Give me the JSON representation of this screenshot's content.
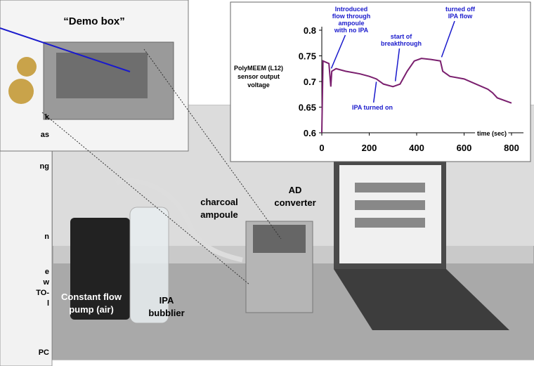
{
  "left_panel_fragments": [
    "k",
    "as",
    "ng",
    "n",
    "e",
    "w",
    "TO-",
    "l",
    "PC"
  ],
  "demo_box": {
    "title": "“Demo box”"
  },
  "photo_labels": {
    "charcoal_ampoule": [
      "charcoal",
      "ampoule"
    ],
    "ad_converter": [
      "AD",
      "converter"
    ],
    "pump": [
      "Constant flow",
      "pump (air)"
    ],
    "bubbler": [
      "IPA",
      "bubblier"
    ]
  },
  "chart_data": {
    "type": "line",
    "y_label": [
      "PolyMEEM (L12)",
      "sensor output",
      "voltage"
    ],
    "x_label": "time (sec)",
    "x": [
      0,
      5,
      30,
      38,
      42,
      60,
      100,
      160,
      200,
      230,
      260,
      300,
      330,
      360,
      390,
      420,
      460,
      500,
      510,
      540,
      600,
      650,
      700,
      720,
      740,
      800
    ],
    "series": [
      {
        "name": "PolyMEEM (L12)",
        "color": "#7a1f6e",
        "values": [
          0.6,
          0.74,
          0.735,
          0.69,
          0.72,
          0.725,
          0.72,
          0.715,
          0.71,
          0.705,
          0.695,
          0.69,
          0.695,
          0.72,
          0.74,
          0.745,
          0.743,
          0.74,
          0.72,
          0.71,
          0.705,
          0.695,
          0.685,
          0.678,
          0.668,
          0.658
        ]
      }
    ],
    "xlim": [
      0,
      800
    ],
    "ylim": [
      0.6,
      0.8
    ],
    "xticks": [
      0,
      200,
      400,
      600,
      800
    ],
    "yticks": [
      0.6,
      0.65,
      0.7,
      0.75,
      0.8
    ],
    "annotations": [
      {
        "text": [
          "Introduced",
          "flow through",
          "ampoule",
          "with no IPA"
        ],
        "x": 40,
        "y": 0.72
      },
      {
        "text": [
          "start of",
          "breakthrough"
        ],
        "x": 310,
        "y": 0.695
      },
      {
        "text": [
          "turned off",
          "IPA flow"
        ],
        "x": 505,
        "y": 0.742
      },
      {
        "text": [
          "IPA turned on"
        ],
        "x": 230,
        "y": 0.705
      }
    ]
  }
}
